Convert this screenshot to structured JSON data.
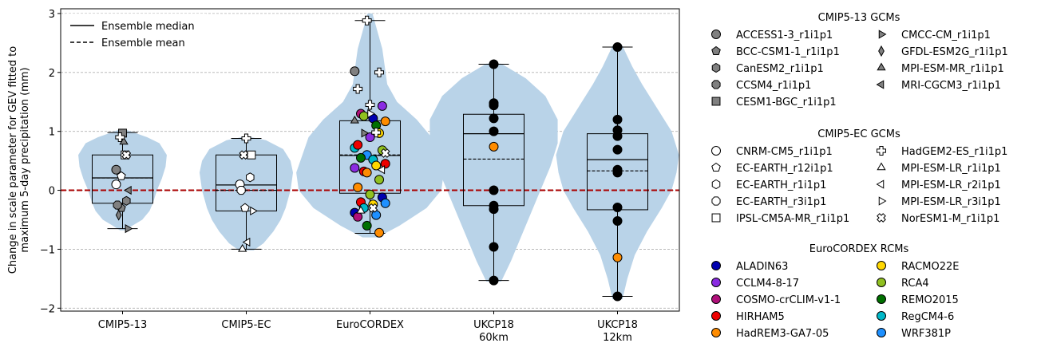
{
  "chart_data": {
    "type": "violin+box+strip",
    "ylabel": [
      "Change in scale parameter for GEV fitted to",
      "maximum 5-day precipitation (mm)"
    ],
    "ylim": [
      -2.05,
      3.08
    ],
    "yticks": [
      -2,
      -1,
      0,
      1,
      2,
      3
    ],
    "grid": "horizontal dashed",
    "zero_line_color": "#aa0000",
    "violin_color": "#b9d3e8",
    "categories": [
      {
        "label": "CMIP5-13",
        "label2": ""
      },
      {
        "label": "CMIP5-EC",
        "label2": ""
      },
      {
        "label": "EuroCORDEX",
        "label2": ""
      },
      {
        "label": "UKCP18",
        "label2": "60km"
      },
      {
        "label": "UKCP18",
        "label2": "12km"
      }
    ],
    "legend_lines": [
      {
        "label": "Ensemble median",
        "style": "solid"
      },
      {
        "label": "Ensemble mean",
        "style": "dashed"
      }
    ],
    "groups": [
      {
        "box": {
          "q1": -0.22,
          "median": 0.21,
          "q3": 0.6,
          "whislo": -0.65,
          "whishi": 0.98,
          "mean": 0.21
        },
        "violin": {
          "ymin": -0.68,
          "ymax": 1.02,
          "points": [
            [
              -0.68,
              0.02
            ],
            [
              -0.6,
              0.08
            ],
            [
              -0.5,
              0.16
            ],
            [
              -0.35,
              0.22
            ],
            [
              -0.2,
              0.25
            ],
            [
              0.0,
              0.28
            ],
            [
              0.2,
              0.32
            ],
            [
              0.4,
              0.35
            ],
            [
              0.6,
              0.36
            ],
            [
              0.8,
              0.3
            ],
            [
              0.9,
              0.2
            ],
            [
              1.02,
              0.04
            ]
          ]
        },
        "points": [
          {
            "model": "ACCESS1-3_r1i1p1",
            "y": 0.35
          },
          {
            "model": "BCC-CSM1-1_r1i1p1",
            "y": -0.3
          },
          {
            "model": "CanESM2_r1i1p1",
            "y": -0.18
          },
          {
            "model": "CCSM4_r1i1p1",
            "y": -0.25
          },
          {
            "model": "CESM1-BGC_r1i1p1",
            "y": 0.97
          },
          {
            "model": "CMCC-CM_r1i1p1",
            "y": -0.65
          },
          {
            "model": "GFDL-ESM2G_r1i1p1",
            "y": -0.42
          },
          {
            "model": "MPI-ESM-MR_r1i1p1",
            "y": 0.82
          },
          {
            "model": "MRI-CGCM3_r1i1p1",
            "y": 0.0
          },
          {
            "model": "HadGEM2-ES_r1i1p1",
            "y": 0.9
          },
          {
            "model": "IPSL-CM5A-MR_r1i1p1",
            "y": 0.6
          },
          {
            "model": "CNRM-CM5_r1i1p1",
            "y": 0.1
          },
          {
            "model": "EC-EARTH_r12i1p1",
            "y": 0.24
          },
          {
            "model": "NorESM1-M_r1i1p1",
            "y": 0.6
          }
        ]
      },
      {
        "box": {
          "q1": -0.35,
          "median": 0.09,
          "q3": 0.6,
          "whislo": -1.0,
          "whishi": 0.88,
          "mean": 0.0
        },
        "violin": {
          "ymin": -1.02,
          "ymax": 0.9,
          "points": [
            [
              -1.02,
              0.06
            ],
            [
              -0.9,
              0.14
            ],
            [
              -0.7,
              0.22
            ],
            [
              -0.5,
              0.28
            ],
            [
              -0.3,
              0.32
            ],
            [
              0.0,
              0.36
            ],
            [
              0.3,
              0.38
            ],
            [
              0.5,
              0.36
            ],
            [
              0.7,
              0.3
            ],
            [
              0.85,
              0.16
            ],
            [
              0.9,
              0.04
            ]
          ]
        },
        "points": [
          {
            "model": "CNRM-CM5_r1i1p1",
            "y": 0.1
          },
          {
            "model": "EC-EARTH_r12i1p1",
            "y": -0.3
          },
          {
            "model": "EC-EARTH_r1i1p1",
            "y": 0.22
          },
          {
            "model": "EC-EARTH_r3i1p1",
            "y": 0.0
          },
          {
            "model": "HadGEM2-ES_r1i1p1",
            "y": 0.88
          },
          {
            "model": "IPSL-CM5A-MR_r1i1p1",
            "y": 0.6
          },
          {
            "model": "MPI-ESM-LR_r1i1p1",
            "y": -1.0
          },
          {
            "model": "MPI-ESM-LR_r2i1p1",
            "y": -0.88
          },
          {
            "model": "MPI-ESM-LR_r3i1p1",
            "y": -0.35
          },
          {
            "model": "NorESM1-M_r1i1p1",
            "y": 0.6
          }
        ]
      },
      {
        "box": {
          "q1": -0.05,
          "median": 0.59,
          "q3": 1.18,
          "whislo": -0.73,
          "whishi": 2.88,
          "mean": 0.6
        },
        "violin": {
          "ymin": -0.8,
          "ymax": 3.0,
          "points": [
            [
              -0.8,
              0.06
            ],
            [
              -0.6,
              0.24
            ],
            [
              -0.3,
              0.46
            ],
            [
              0.0,
              0.58
            ],
            [
              0.3,
              0.6
            ],
            [
              0.6,
              0.55
            ],
            [
              0.9,
              0.5
            ],
            [
              1.2,
              0.38
            ],
            [
              1.5,
              0.22
            ],
            [
              1.8,
              0.14
            ],
            [
              2.1,
              0.12
            ],
            [
              2.4,
              0.1
            ],
            [
              2.7,
              0.06
            ],
            [
              3.0,
              0.02
            ]
          ]
        },
        "points": [
          {
            "model": "ACCESS1-3_r1i1p1",
            "y": 2.02
          },
          {
            "model": "HadGEM2-ES_r1i1p1",
            "y": 2.88
          },
          {
            "model": "HadGEM2-ES_r1i1p1",
            "y": 2.0
          },
          {
            "model": "HadGEM2-ES_r1i1p1",
            "y": 1.72
          },
          {
            "model": "HadGEM2-ES_r1i1p1",
            "y": 1.45
          },
          {
            "model": "CCLM4-8-17",
            "y": 1.43
          },
          {
            "model": "COSMO-crCLIM-v1-1",
            "y": 1.3
          },
          {
            "model": "ALADIN63",
            "y": 1.22
          },
          {
            "model": "HadREM3-GA7-05",
            "y": 1.17
          },
          {
            "model": "RCA4",
            "y": 1.26
          },
          {
            "model": "REMO2015",
            "y": 1.1
          },
          {
            "model": "RegCM4-6",
            "y": 0.72
          },
          {
            "model": "WRF381P",
            "y": 0.6
          },
          {
            "model": "RACMO22E",
            "y": 0.97
          },
          {
            "model": "HIRHAM5",
            "y": 0.77
          },
          {
            "model": "CCLM4-8-17",
            "y": 0.9
          },
          {
            "model": "RCA4",
            "y": 0.68
          },
          {
            "model": "REMO2015",
            "y": 0.55
          },
          {
            "model": "RegCM4-6",
            "y": 0.52
          },
          {
            "model": "HIRHAM5",
            "y": 0.45
          },
          {
            "model": "HIRHAM5",
            "y": 0.32
          },
          {
            "model": "RACMO22E",
            "y": 0.42
          },
          {
            "model": "CCLM4-8-17",
            "y": 0.38
          },
          {
            "model": "HadREM3-GA7-05",
            "y": 0.3
          },
          {
            "model": "RCA4",
            "y": 0.18
          },
          {
            "model": "HadREM3-GA7-05",
            "y": 0.05
          },
          {
            "model": "RCA4",
            "y": -0.07
          },
          {
            "model": "ALADIN63",
            "y": -0.12
          },
          {
            "model": "HIRHAM5",
            "y": -0.2
          },
          {
            "model": "RACMO22E",
            "y": -0.24
          },
          {
            "model": "WRF381P",
            "y": -0.22
          },
          {
            "model": "RegCM4-6",
            "y": -0.3
          },
          {
            "model": "WRF381P",
            "y": -0.42
          },
          {
            "model": "ALADIN63",
            "y": -0.38
          },
          {
            "model": "REMO2015",
            "y": -0.6
          },
          {
            "model": "HadREM3-GA7-05",
            "y": -0.72
          },
          {
            "model": "COSMO-crCLIM-v1-1",
            "y": -0.45
          },
          {
            "model": "MPI-ESM-LR_r3i1p1",
            "y": 1.3
          },
          {
            "model": "MPI-ESM-LR_r2i1p1",
            "y": 0.35
          },
          {
            "model": "MPI-ESM-LR_r1i1p1",
            "y": -0.35
          },
          {
            "model": "NorESM1-M_r1i1p1",
            "y": -0.3
          },
          {
            "model": "NorESM1-M_r1i1p1",
            "y": 0.63
          },
          {
            "model": "CMCC-CM_r1i1p1",
            "y": 0.97
          },
          {
            "model": "HadGEM2-ES_r1i1p1",
            "y": 0.98
          },
          {
            "model": "MPI-ESM-MR_r1i1p1",
            "y": 1.18
          }
        ]
      },
      {
        "box": {
          "q1": -0.26,
          "median": 0.96,
          "q3": 1.29,
          "whislo": -1.53,
          "whishi": 2.14,
          "mean": 0.53
        },
        "violin": {
          "ymin": -1.55,
          "ymax": 2.15,
          "points": [
            [
              -1.55,
              0.06
            ],
            [
              -1.2,
              0.14
            ],
            [
              -0.8,
              0.22
            ],
            [
              -0.4,
              0.3
            ],
            [
              0.0,
              0.38
            ],
            [
              0.4,
              0.46
            ],
            [
              0.8,
              0.52
            ],
            [
              1.2,
              0.52
            ],
            [
              1.6,
              0.42
            ],
            [
              1.9,
              0.26
            ],
            [
              2.15,
              0.06
            ]
          ]
        },
        "points": [
          {
            "model": "UKCP18 60km member",
            "y": 2.14
          },
          {
            "model": "UKCP18 60km member",
            "y": 1.48
          },
          {
            "model": "UKCP18 60km member",
            "y": 1.44
          },
          {
            "model": "UKCP18 60km member",
            "y": 1.22
          },
          {
            "model": "UKCP18 60km member",
            "y": 1.0
          },
          {
            "model": "HadREM3-GA7-05",
            "y": 0.74
          },
          {
            "model": "UKCP18 60km member",
            "y": 0.0
          },
          {
            "model": "UKCP18 60km member",
            "y": -0.26
          },
          {
            "model": "UKCP18 60km member",
            "y": -0.32
          },
          {
            "model": "UKCP18 60km member",
            "y": -0.96
          },
          {
            "model": "UKCP18 60km member",
            "y": -1.53
          }
        ]
      },
      {
        "box": {
          "q1": -0.33,
          "median": 0.52,
          "q3": 0.96,
          "whislo": -1.8,
          "whishi": 2.43,
          "mean": 0.33
        },
        "violin": {
          "ymin": -1.85,
          "ymax": 2.45,
          "points": [
            [
              -1.85,
              0.04
            ],
            [
              -1.5,
              0.08
            ],
            [
              -1.1,
              0.14
            ],
            [
              -0.7,
              0.24
            ],
            [
              -0.3,
              0.36
            ],
            [
              0.0,
              0.44
            ],
            [
              0.3,
              0.48
            ],
            [
              0.6,
              0.5
            ],
            [
              1.0,
              0.44
            ],
            [
              1.4,
              0.32
            ],
            [
              1.8,
              0.2
            ],
            [
              2.1,
              0.12
            ],
            [
              2.45,
              0.04
            ]
          ]
        },
        "points": [
          {
            "model": "UKCP18 12km member",
            "y": 2.43
          },
          {
            "model": "UKCP18 12km member",
            "y": 1.2
          },
          {
            "model": "UKCP18 12km member",
            "y": 1.02
          },
          {
            "model": "UKCP18 12km member",
            "y": 0.92
          },
          {
            "model": "UKCP18 12km member",
            "y": 0.69
          },
          {
            "model": "UKCP18 12km member",
            "y": 0.35
          },
          {
            "model": "UKCP18 12km member",
            "y": 0.3
          },
          {
            "model": "UKCP18 12km member",
            "y": -0.29
          },
          {
            "model": "UKCP18 12km member",
            "y": -0.52
          },
          {
            "model": "HadREM3-GA7-05",
            "y": -1.14
          },
          {
            "model": "UKCP18 12km member",
            "y": -1.8
          }
        ]
      }
    ],
    "legends": [
      {
        "title": "CMIP5-13 GCMs",
        "entries": [
          {
            "label": "ACCESS1-3_r1i1p1",
            "marker": "circle",
            "color": "#808080"
          },
          {
            "label": "CMCC-CM_r1i1p1",
            "marker": "triangle-right",
            "color": "#808080"
          },
          {
            "label": "BCC-CSM1-1_r1i1p1",
            "marker": "pentagon",
            "color": "#808080"
          },
          {
            "label": "GFDL-ESM2G_r1i1p1",
            "marker": "thin-diamond",
            "color": "#808080"
          },
          {
            "label": "CanESM2_r1i1p1",
            "marker": "hexagon",
            "color": "#808080"
          },
          {
            "label": "MPI-ESM-MR_r1i1p1",
            "marker": "triangle-up",
            "color": "#808080"
          },
          {
            "label": "CCSM4_r1i1p1",
            "marker": "octagon",
            "color": "#808080"
          },
          {
            "label": "MRI-CGCM3_r1i1p1",
            "marker": "triangle-left",
            "color": "#808080"
          },
          {
            "label": "CESM1-BGC_r1i1p1",
            "marker": "square",
            "color": "#808080"
          }
        ]
      },
      {
        "title": "CMIP5-EC GCMs",
        "entries": [
          {
            "label": "CNRM-CM5_r1i1p1",
            "marker": "circle",
            "color": "#ffffff"
          },
          {
            "label": "HadGEM2-ES_r1i1p1",
            "marker": "plus",
            "color": "#ffffff"
          },
          {
            "label": "EC-EARTH_r12i1p1",
            "marker": "pentagon",
            "color": "#ffffff"
          },
          {
            "label": "MPI-ESM-LR_r1i1p1",
            "marker": "triangle-up",
            "color": "#ffffff"
          },
          {
            "label": "EC-EARTH_r1i1p1",
            "marker": "hexagon",
            "color": "#ffffff"
          },
          {
            "label": "MPI-ESM-LR_r2i1p1",
            "marker": "triangle-left",
            "color": "#ffffff"
          },
          {
            "label": "EC-EARTH_r3i1p1",
            "marker": "octagon",
            "color": "#ffffff"
          },
          {
            "label": "MPI-ESM-LR_r3i1p1",
            "marker": "triangle-right",
            "color": "#ffffff"
          },
          {
            "label": "IPSL-CM5A-MR_r1i1p1",
            "marker": "square",
            "color": "#ffffff"
          },
          {
            "label": "NorESM1-M_r1i1p1",
            "marker": "x-filled",
            "color": "#ffffff"
          }
        ]
      },
      {
        "title": "EuroCORDEX RCMs",
        "entries": [
          {
            "label": "ALADIN63",
            "marker": "circle",
            "color": "#0000b0"
          },
          {
            "label": "RACMO22E",
            "marker": "circle",
            "color": "#ffd700"
          },
          {
            "label": "CCLM4-8-17",
            "marker": "circle",
            "color": "#8a2be2"
          },
          {
            "label": "RCA4",
            "marker": "circle",
            "color": "#90c020"
          },
          {
            "label": "COSMO-crCLIM-v1-1",
            "marker": "circle",
            "color": "#b0107a"
          },
          {
            "label": "REMO2015",
            "marker": "circle",
            "color": "#007000"
          },
          {
            "label": "HIRHAM5",
            "marker": "circle",
            "color": "#ee0000"
          },
          {
            "label": "RegCM4-6",
            "marker": "circle",
            "color": "#00b8c8"
          },
          {
            "label": "HadREM3-GA7-05",
            "marker": "circle",
            "color": "#ff8c00"
          },
          {
            "label": "WRF381P",
            "marker": "circle",
            "color": "#1e90ff"
          }
        ]
      }
    ]
  }
}
